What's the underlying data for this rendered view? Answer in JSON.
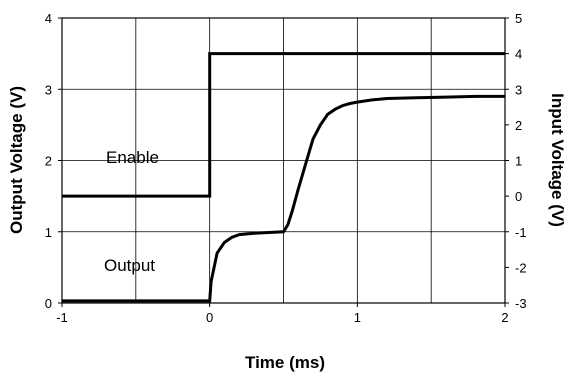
{
  "chart_data": {
    "type": "line",
    "xlabel": "Time (ms)",
    "ylabel": "Output Voltage (V)",
    "y2label": "Input Voltage (V)",
    "xlim": [
      -1,
      2
    ],
    "ylim": [
      0,
      4
    ],
    "y2lim": [
      -3,
      5
    ],
    "x_ticks": [
      "-1",
      "0",
      "1",
      "2"
    ],
    "y_ticks": [
      "0",
      "1",
      "2",
      "3",
      "4"
    ],
    "y2_ticks": [
      "-3",
      "-2",
      "-1",
      "0",
      "1",
      "2",
      "3",
      "4",
      "5"
    ],
    "grid": true,
    "annotations": [
      "Enable",
      "Output"
    ],
    "series": [
      {
        "name": "Enable",
        "axis": "right",
        "x": [
          -1,
          0,
          0,
          2
        ],
        "y": [
          0,
          0,
          4,
          4
        ]
      },
      {
        "name": "Output",
        "axis": "left",
        "x": [
          -1,
          -0.5,
          0,
          0.01,
          0.05,
          0.1,
          0.15,
          0.2,
          0.3,
          0.4,
          0.5,
          0.53,
          0.56,
          0.6,
          0.65,
          0.7,
          0.75,
          0.8,
          0.85,
          0.9,
          0.95,
          1.0,
          1.1,
          1.2,
          1.4,
          1.6,
          1.8,
          2.0
        ],
        "y": [
          0.03,
          0.03,
          0.03,
          0.3,
          0.7,
          0.85,
          0.92,
          0.96,
          0.98,
          0.99,
          1.0,
          1.1,
          1.3,
          1.6,
          1.95,
          2.3,
          2.5,
          2.65,
          2.72,
          2.77,
          2.8,
          2.82,
          2.85,
          2.87,
          2.88,
          2.89,
          2.9,
          2.9
        ]
      }
    ]
  }
}
